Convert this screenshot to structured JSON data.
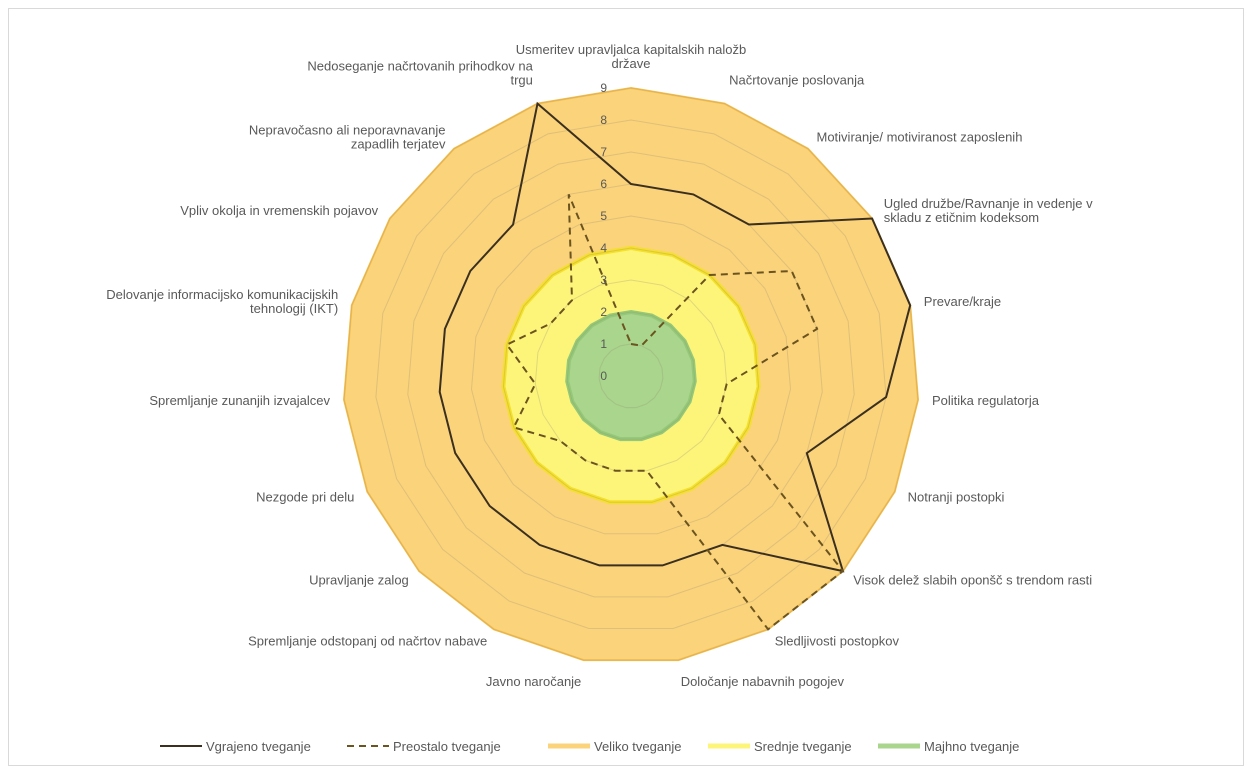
{
  "chart_data": {
    "type": "radar",
    "title": "",
    "r_ticks": [
      0,
      1,
      2,
      3,
      4,
      5,
      6,
      7,
      8,
      9
    ],
    "r_range": [
      0,
      9
    ],
    "grid": true,
    "legend_position": "bottom",
    "axes": [
      "Usmeritev upravljalca kapitalskih naložb države",
      "Načrtovanje poslovanja",
      "Motiviranje/ motiviranost zaposlenih",
      "Ugled družbe/Ravnanje in vedenje v skladu z etičnim kodeksom",
      "Prevare/kraje",
      "Politika regulatorja",
      "Notranji postopki",
      "Visok delež slabih oponšč s trendom rasti",
      "Sledljivosti postopkov",
      "Določanje nabavnih pogojev",
      "Javno naročanje",
      "Spremljanje odstopanj od načrtov nabave",
      "Upravljanje zalog",
      "Nezgode pri delu",
      "Spremljanje zunanjih izvajalcev",
      "Delovanje informacijsko komunikacijskih tehnologij (IKT)",
      "Vpliv okolja in vremenskih pojavov",
      "Nepravočasno ali neporavnavanje zapadlih terjatev",
      "Nedoseganje načrtovanih prihodkov na trgu"
    ],
    "series": [
      {
        "name": "Vgrajeno tveganje",
        "style": "solid",
        "color": "#3b3020",
        "values": [
          6,
          6,
          6,
          9,
          9,
          8,
          6,
          9,
          6,
          6,
          6,
          6,
          6,
          6,
          6,
          6,
          6,
          6,
          9
        ]
      },
      {
        "name": "Preostalo tveganje",
        "style": "dashed",
        "color": "#6b5420",
        "values": [
          1,
          1,
          4,
          6,
          6,
          3,
          3,
          9,
          9,
          3,
          3,
          3,
          3,
          4,
          3,
          4,
          3,
          3,
          6
        ]
      }
    ],
    "bands": [
      {
        "name": "Veliko tveganje",
        "color": "#fbd37a",
        "from": 4,
        "to": 9
      },
      {
        "name": "Srednje tveganje",
        "color": "#fdf57a",
        "from": 2,
        "to": 4
      },
      {
        "name": "Majhno tveganje",
        "color": "#a9d58c",
        "from": 0,
        "to": 2
      }
    ]
  }
}
